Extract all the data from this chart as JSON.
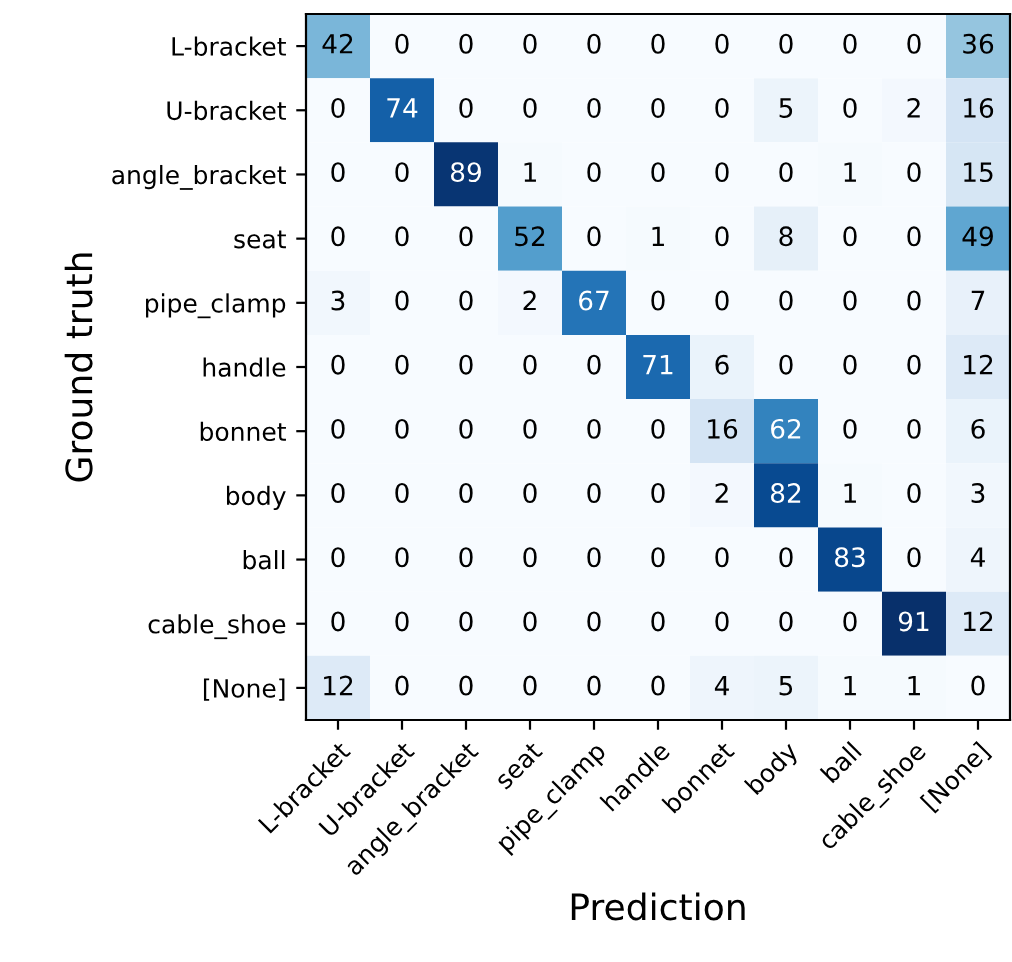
{
  "chart_data": {
    "type": "heatmap",
    "xlabel": "Prediction",
    "ylabel": "Ground truth",
    "categories": [
      "L-bracket",
      "U-bracket",
      "angle_bracket",
      "seat",
      "pipe_clamp",
      "handle",
      "bonnet",
      "body",
      "ball",
      "cable_shoe",
      "[None]"
    ],
    "y_categories": [
      "L-bracket",
      "U-bracket",
      "angle_bracket",
      "seat",
      "pipe_clamp",
      "handle",
      "bonnet",
      "body",
      "ball",
      "cable_shoe",
      "[None]"
    ],
    "cells": [
      [
        42,
        0,
        0,
        0,
        0,
        0,
        0,
        0,
        0,
        0,
        36
      ],
      [
        0,
        74,
        0,
        0,
        0,
        0,
        0,
        5,
        0,
        2,
        16
      ],
      [
        0,
        0,
        89,
        1,
        0,
        0,
        0,
        0,
        1,
        0,
        15
      ],
      [
        0,
        0,
        0,
        52,
        0,
        1,
        0,
        8,
        0,
        0,
        49
      ],
      [
        3,
        0,
        0,
        2,
        67,
        0,
        0,
        0,
        0,
        0,
        7
      ],
      [
        0,
        0,
        0,
        0,
        0,
        71,
        6,
        0,
        0,
        0,
        12
      ],
      [
        0,
        0,
        0,
        0,
        0,
        0,
        16,
        62,
        0,
        0,
        6
      ],
      [
        0,
        0,
        0,
        0,
        0,
        0,
        2,
        82,
        1,
        0,
        3
      ],
      [
        0,
        0,
        0,
        0,
        0,
        0,
        0,
        0,
        83,
        0,
        4
      ],
      [
        0,
        0,
        0,
        0,
        0,
        0,
        0,
        0,
        0,
        91,
        12
      ],
      [
        12,
        0,
        0,
        0,
        0,
        0,
        4,
        5,
        1,
        1,
        0
      ]
    ],
    "data_labels": true,
    "grid": false
  }
}
